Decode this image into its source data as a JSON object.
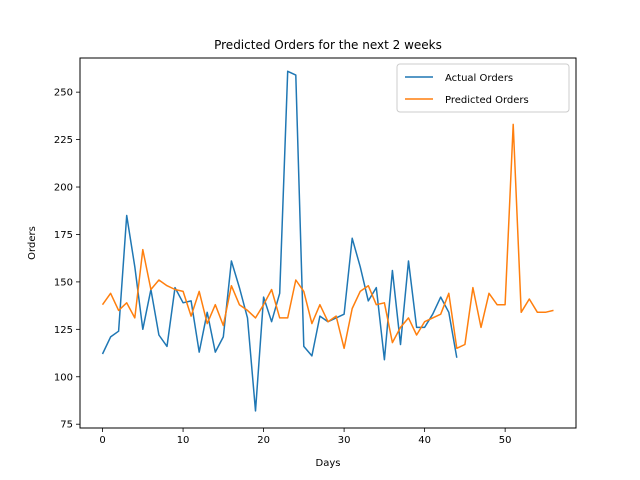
{
  "chart_data": {
    "type": "line",
    "title": "Predicted Orders for the next 2 weeks",
    "xlabel": "Days",
    "ylabel": "Orders",
    "xlim": [
      -2.8,
      58.8
    ],
    "ylim": [
      73,
      268
    ],
    "xticks": [
      0,
      10,
      20,
      30,
      40,
      50
    ],
    "yticks": [
      75,
      100,
      125,
      150,
      175,
      200,
      225,
      250
    ],
    "grid": false,
    "legend_position": "top-right",
    "series": [
      {
        "name": "Actual Orders",
        "color": "#1f77b4",
        "x": [
          0,
          1,
          2,
          3,
          4,
          5,
          6,
          7,
          8,
          9,
          10,
          11,
          12,
          13,
          14,
          15,
          16,
          17,
          18,
          19,
          20,
          21,
          22,
          23,
          24,
          25,
          26,
          27,
          28,
          29,
          30,
          31,
          32,
          33,
          34,
          35,
          36,
          37,
          38,
          39,
          40,
          41,
          42,
          43,
          44
        ],
        "values": [
          112,
          121,
          124,
          185,
          158,
          125,
          146,
          122,
          116,
          147,
          139,
          140,
          113,
          134,
          113,
          121,
          161,
          147,
          131,
          82,
          142,
          129,
          144,
          261,
          259,
          116,
          111,
          132,
          129,
          131,
          133,
          173,
          158,
          140,
          147,
          109,
          156,
          117,
          161,
          126,
          126,
          133,
          142,
          134,
          110
        ]
      },
      {
        "name": "Predicted Orders",
        "color": "#ff7f0e",
        "x": [
          0,
          1,
          2,
          3,
          4,
          5,
          6,
          7,
          8,
          9,
          10,
          11,
          12,
          13,
          14,
          15,
          16,
          17,
          18,
          19,
          20,
          21,
          22,
          23,
          24,
          25,
          26,
          27,
          28,
          29,
          30,
          31,
          32,
          33,
          34,
          35,
          36,
          37,
          38,
          39,
          40,
          41,
          42,
          43,
          44,
          45,
          46,
          47,
          48,
          49,
          50,
          51,
          52,
          53,
          54,
          55,
          56
        ],
        "values": [
          138,
          144,
          135,
          139,
          131,
          167,
          146,
          151,
          148,
          146,
          145,
          132,
          145,
          128,
          138,
          127,
          148,
          138,
          135,
          131,
          138,
          146,
          131,
          131,
          151,
          145,
          128,
          138,
          129,
          132,
          115,
          136,
          145,
          148,
          138,
          139,
          118,
          126,
          131,
          122,
          129,
          131,
          133,
          144,
          115,
          117,
          147,
          126,
          144,
          138,
          138,
          233,
          134,
          141,
          134,
          134,
          135
        ]
      }
    ]
  }
}
